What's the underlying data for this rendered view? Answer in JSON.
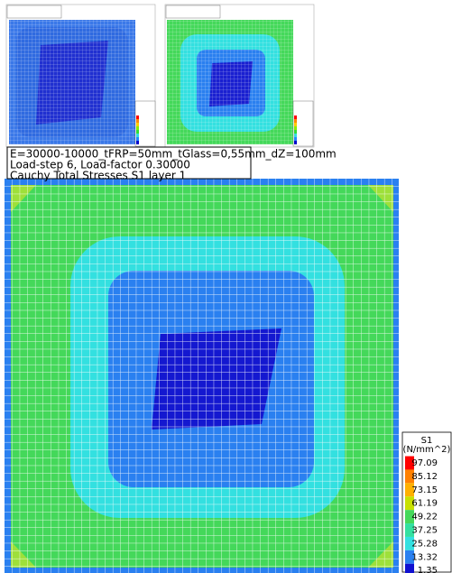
{
  "caption": {
    "lines": [
      "E=30000-10000_tFRP=50mm_tGlass=0,55mm_dZ=100mm",
      "Load-step 6, Load-factor 0.30000",
      "Cauchy Total Stresses S1 layer 1"
    ]
  },
  "legend": {
    "title": "S1",
    "unit": "(N/mm^2)",
    "values": [
      "97.09",
      "85.12",
      "73.15",
      "61.19",
      "49.22",
      "37.25",
      "25.28",
      "13.32",
      "1.35"
    ]
  }
}
